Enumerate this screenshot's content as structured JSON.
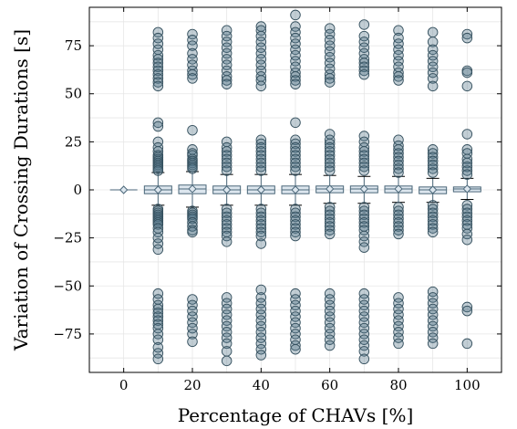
{
  "chart_data": {
    "type": "boxplot",
    "title": "",
    "xlabel": "Percentage of CHAVs [%]",
    "ylabel": "Variation of Crossing Durations [s]",
    "xlim": [
      -10,
      110
    ],
    "ylim": [
      -95,
      95
    ],
    "x_ticks": [
      0,
      20,
      40,
      60,
      80,
      100
    ],
    "x_tick_labels": [
      "0",
      "20",
      "40",
      "60",
      "80",
      "100"
    ],
    "y_ticks": [
      -75,
      -50,
      -25,
      0,
      25,
      50,
      75
    ],
    "y_tick_labels": [
      "−75",
      "−50",
      "−25",
      "0",
      "25",
      "50",
      "75"
    ],
    "grid": true,
    "legend": "none",
    "colors": {
      "box_fill": "#dce6ee",
      "box_edge": "#4a6678",
      "outlier_fill": "#4f7486",
      "outlier_edge": "#35505e",
      "grid": "#e6e6e6"
    },
    "boxes": [
      {
        "x": 0,
        "q1": 0.0,
        "median": 0.0,
        "q3": 0.0,
        "whisker_low": 0.0,
        "whisker_high": 0.0,
        "mean": 0.0
      },
      {
        "x": 10,
        "q1": -2.0,
        "median": 0.0,
        "q3": 2.0,
        "whisker_low": -8.0,
        "whisker_high": 9.0,
        "mean": 0.0
      },
      {
        "x": 20,
        "q1": -2.0,
        "median": 0.5,
        "q3": 2.5,
        "whisker_low": -9.0,
        "whisker_high": 9.5,
        "mean": 0.5
      },
      {
        "x": 30,
        "q1": -2.0,
        "median": 0.0,
        "q3": 2.0,
        "whisker_low": -8.0,
        "whisker_high": 8.0,
        "mean": 0.0
      },
      {
        "x": 40,
        "q1": -2.0,
        "median": 0.0,
        "q3": 2.0,
        "whisker_low": -8.0,
        "whisker_high": 8.0,
        "mean": 0.0
      },
      {
        "x": 50,
        "q1": -2.0,
        "median": 0.0,
        "q3": 2.0,
        "whisker_low": -8.0,
        "whisker_high": 8.0,
        "mean": 0.0
      },
      {
        "x": 60,
        "q1": -1.5,
        "median": 0.5,
        "q3": 2.0,
        "whisker_low": -7.0,
        "whisker_high": 7.5,
        "mean": 0.5
      },
      {
        "x": 70,
        "q1": -1.5,
        "median": 0.5,
        "q3": 2.0,
        "whisker_low": -7.0,
        "whisker_high": 7.0,
        "mean": 0.5
      },
      {
        "x": 80,
        "q1": -1.5,
        "median": 0.5,
        "q3": 2.0,
        "whisker_low": -6.5,
        "whisker_high": 7.0,
        "mean": 0.5
      },
      {
        "x": 90,
        "q1": -2.0,
        "median": 0.0,
        "q3": 1.5,
        "whisker_low": -6.5,
        "whisker_high": 6.0,
        "mean": 0.0
      },
      {
        "x": 100,
        "q1": -1.0,
        "median": 0.5,
        "q3": 1.5,
        "whisker_low": -5.0,
        "whisker_high": 6.0,
        "mean": 0.5
      }
    ],
    "outliers": [
      {
        "x": 10,
        "values": [
          82,
          79,
          76,
          73,
          70,
          68,
          66,
          64,
          62,
          60,
          58,
          56,
          54,
          35,
          33,
          25,
          22,
          20,
          18,
          17,
          16,
          15,
          14,
          13,
          12,
          11,
          10,
          -10,
          -11,
          -12,
          -13,
          -14,
          -15,
          -16,
          -17,
          -18,
          -20,
          -22,
          -25,
          -28,
          -31,
          -54,
          -57,
          -60,
          -62,
          -64,
          -66,
          -68,
          -70,
          -72,
          -75,
          -78,
          -82,
          -85,
          -88
        ]
      },
      {
        "x": 20,
        "values": [
          81,
          78,
          75,
          71,
          68,
          65,
          62,
          60,
          58,
          31,
          21,
          19,
          18,
          16,
          15,
          14,
          13,
          12,
          11,
          -11,
          -12,
          -13,
          -14,
          -15,
          -17,
          -19,
          -21,
          -22,
          -57,
          -60,
          -63,
          -66,
          -69,
          -72,
          -75,
          -79
        ]
      },
      {
        "x": 30,
        "values": [
          83,
          80,
          77,
          74,
          71,
          68,
          65,
          62,
          59,
          57,
          55,
          25,
          22,
          20,
          18,
          16,
          14,
          12,
          10,
          -10,
          -12,
          -14,
          -16,
          -18,
          -20,
          -22,
          -24,
          -27,
          -56,
          -59,
          -62,
          -65,
          -68,
          -71,
          -74,
          -77,
          -80,
          -84,
          -89
        ]
      },
      {
        "x": 40,
        "values": [
          85,
          83,
          80,
          77,
          74,
          71,
          68,
          65,
          62,
          59,
          57,
          54,
          26,
          24,
          22,
          20,
          18,
          16,
          14,
          12,
          10,
          -10,
          -12,
          -14,
          -16,
          -18,
          -20,
          -22,
          -24,
          -28,
          -52,
          -56,
          -59,
          -62,
          -65,
          -68,
          -71,
          -74,
          -77,
          -80,
          -83,
          -86
        ]
      },
      {
        "x": 50,
        "values": [
          91,
          85,
          82,
          79,
          76,
          73,
          70,
          67,
          64,
          61,
          59,
          57,
          55,
          35,
          26,
          24,
          22,
          20,
          18,
          16,
          14,
          12,
          10,
          -10,
          -12,
          -14,
          -16,
          -18,
          -20,
          -22,
          -24,
          -54,
          -57,
          -60,
          -63,
          -66,
          -69,
          -72,
          -75,
          -78,
          -81,
          -83
        ]
      },
      {
        "x": 60,
        "values": [
          84,
          81,
          78,
          75,
          72,
          69,
          66,
          63,
          60,
          58,
          56,
          29,
          26,
          24,
          22,
          20,
          18,
          16,
          14,
          12,
          10,
          -9,
          -11,
          -13,
          -15,
          -17,
          -19,
          -21,
          -23,
          -54,
          -57,
          -60,
          -63,
          -66,
          -69,
          -72,
          -75,
          -78,
          -81
        ]
      },
      {
        "x": 70,
        "values": [
          86,
          80,
          77,
          74,
          71,
          68,
          66,
          64,
          62,
          60,
          28,
          25,
          22,
          20,
          18,
          16,
          14,
          12,
          10,
          -9,
          -11,
          -13,
          -15,
          -17,
          -19,
          -21,
          -24,
          -27,
          -30,
          -54,
          -57,
          -60,
          -63,
          -66,
          -69,
          -72,
          -75,
          -78,
          -81,
          -84,
          -88
        ]
      },
      {
        "x": 80,
        "values": [
          83,
          79,
          76,
          73,
          70,
          67,
          64,
          61,
          59,
          57,
          26,
          23,
          21,
          19,
          17,
          15,
          13,
          11,
          9,
          -9,
          -11,
          -13,
          -15,
          -17,
          -19,
          -21,
          -23,
          -56,
          -59,
          -62,
          -65,
          -68,
          -71,
          -74,
          -77,
          -80
        ]
      },
      {
        "x": 90,
        "values": [
          82,
          77,
          73,
          70,
          67,
          64,
          61,
          58,
          54,
          21,
          19,
          17,
          15,
          13,
          11,
          9,
          -8,
          -10,
          -12,
          -14,
          -16,
          -18,
          -20,
          -22,
          -53,
          -56,
          -59,
          -62,
          -65,
          -68,
          -71,
          -74,
          -77,
          -80
        ]
      },
      {
        "x": 100,
        "values": [
          81,
          79,
          62,
          61,
          54,
          29,
          21,
          19,
          16,
          14,
          12,
          10,
          8,
          -8,
          -10,
          -12,
          -14,
          -16,
          -18,
          -20,
          -23,
          -26,
          -61,
          -63,
          -80
        ]
      }
    ]
  }
}
